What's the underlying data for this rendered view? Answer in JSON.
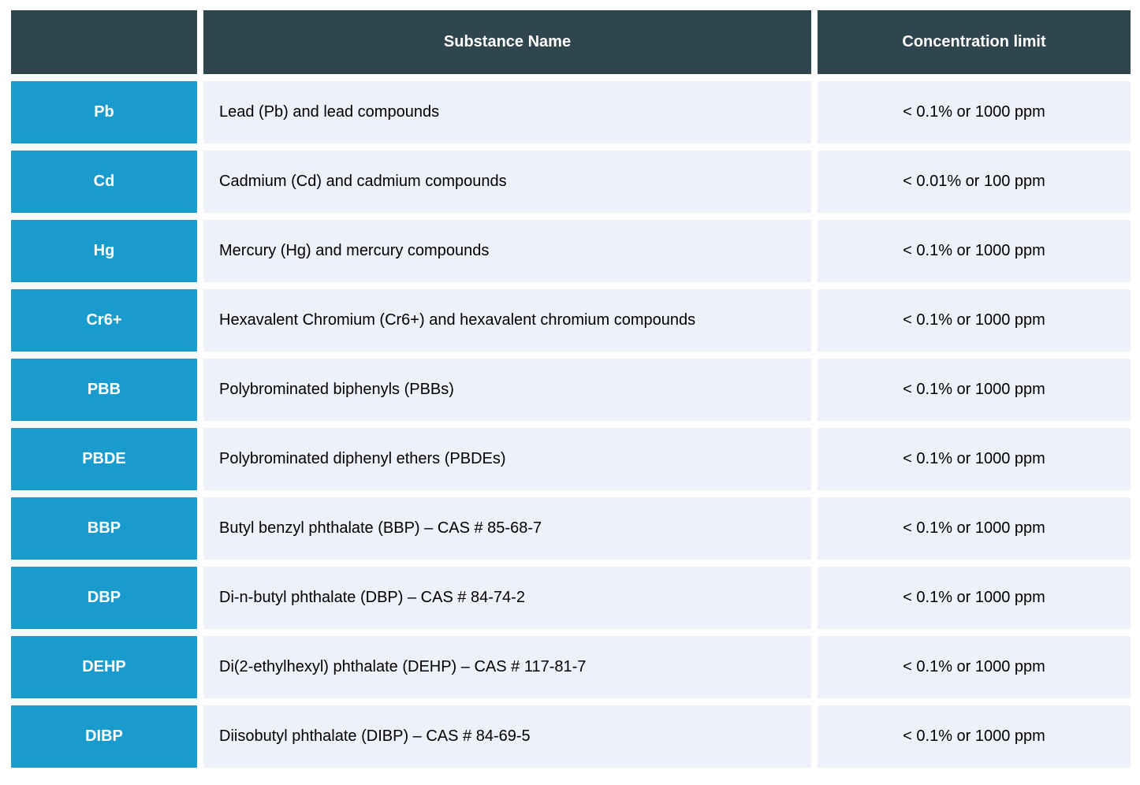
{
  "table": {
    "header": {
      "empty": "",
      "substance_name": "Substance Name",
      "concentration_limit": "Concentration limit"
    },
    "rows": [
      {
        "abbr": "Pb",
        "name": "Lead (Pb) and lead compounds",
        "limit": "< 0.1% or 1000 ppm"
      },
      {
        "abbr": "Cd",
        "name": "Cadmium (Cd) and cadmium compounds",
        "limit": "< 0.01% or 100 ppm"
      },
      {
        "abbr": "Hg",
        "name": "Mercury (Hg) and mercury compounds",
        "limit": "< 0.1% or 1000 ppm"
      },
      {
        "abbr": "Cr6+",
        "name": "Hexavalent Chromium (Cr6+) and hexavalent chromium compounds",
        "limit": "< 0.1% or 1000 ppm"
      },
      {
        "abbr": "PBB",
        "name": "Polybrominated biphenyls (PBBs)",
        "limit": "< 0.1% or 1000 ppm"
      },
      {
        "abbr": "PBDE",
        "name": "Polybrominated diphenyl ethers (PBDEs)",
        "limit": "< 0.1% or 1000 ppm"
      },
      {
        "abbr": "BBP",
        "name": "Butyl benzyl phthalate (BBP) – CAS # 85-68-7",
        "limit": "< 0.1% or 1000 ppm"
      },
      {
        "abbr": "DBP",
        "name": "Di-n-butyl phthalate (DBP) – CAS # 84-74-2",
        "limit": "< 0.1% or 1000 ppm"
      },
      {
        "abbr": "DEHP",
        "name": "Di(2-ethylhexyl) phthalate (DEHP) – CAS # 117-81-7",
        "limit": "< 0.1% or 1000 ppm"
      },
      {
        "abbr": "DIBP",
        "name": "Diisobutyl phthalate (DIBP) – CAS # 84-69-5",
        "limit": "< 0.1% or 1000 ppm"
      }
    ],
    "colors": {
      "header_bg": "#30464f",
      "abbr_bg": "#1a9bce",
      "row_bg": "#eef0fa",
      "header_text": "#ffffff",
      "body_text": "#000000",
      "page_bg": "#ffffff"
    }
  }
}
